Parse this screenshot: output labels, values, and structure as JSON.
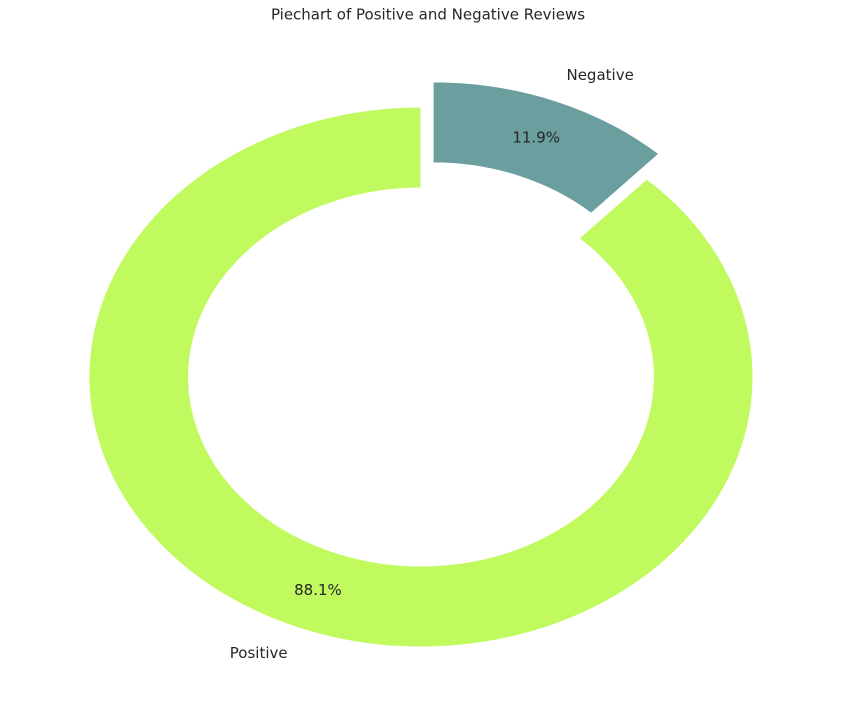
{
  "chart_data": {
    "type": "donut",
    "title": "Piechart of Positive and Negative Reviews",
    "categories": [
      "Positive",
      "Negative"
    ],
    "values": [
      88.1,
      11.9
    ],
    "value_labels": [
      "88.1%",
      "11.9%"
    ],
    "colors": [
      "#c0fa5e",
      "#6b9e9e"
    ],
    "explode": [
      0,
      0.1
    ],
    "startangle": 90
  }
}
